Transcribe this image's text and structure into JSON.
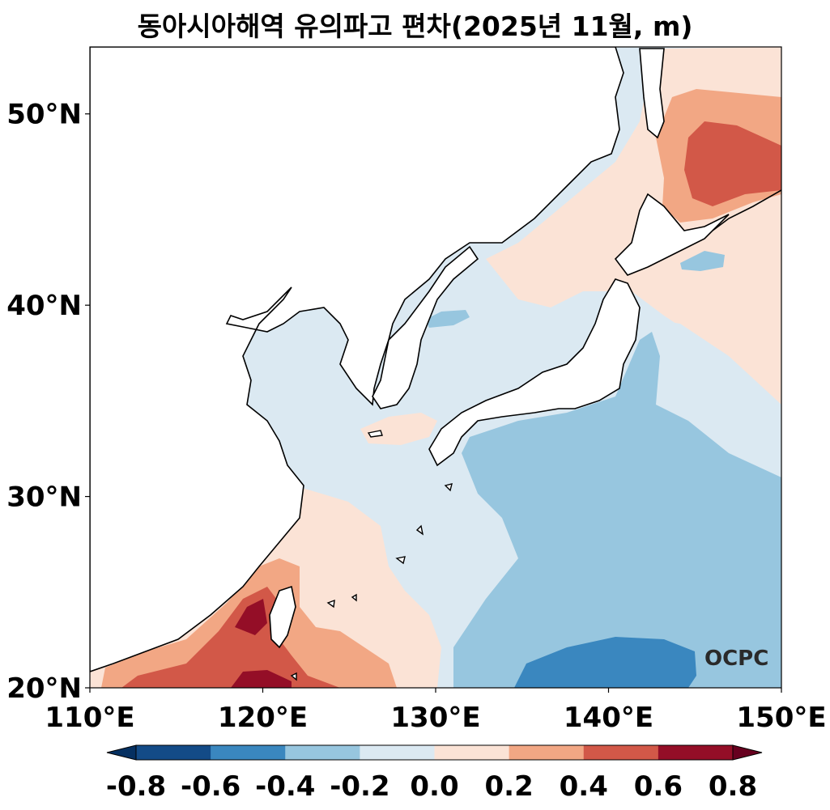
{
  "title": "동아시아해역 유의파고 편차(2025년 11월, m)",
  "map": {
    "lon_range": [
      110,
      150
    ],
    "lat_range": [
      20,
      53.5
    ],
    "lon_ticks": [
      "110°E",
      "120°E",
      "130°E",
      "140°E",
      "150°E"
    ],
    "lat_ticks": [
      "20°N",
      "30°N",
      "40°N",
      "50°N"
    ],
    "logo": "OCPC"
  },
  "colorbar": {
    "labels": [
      "-0.8",
      "-0.6",
      "-0.4",
      "-0.2",
      "0.0",
      "0.2",
      "0.4",
      "0.6",
      "0.8"
    ],
    "colors": [
      "#053061",
      "#134b87",
      "#3a87bf",
      "#97c6df",
      "#dbe9f2",
      "#fbe3d6",
      "#f2a784",
      "#d25848",
      "#940e27",
      "#67001f"
    ],
    "extend": "both"
  }
}
